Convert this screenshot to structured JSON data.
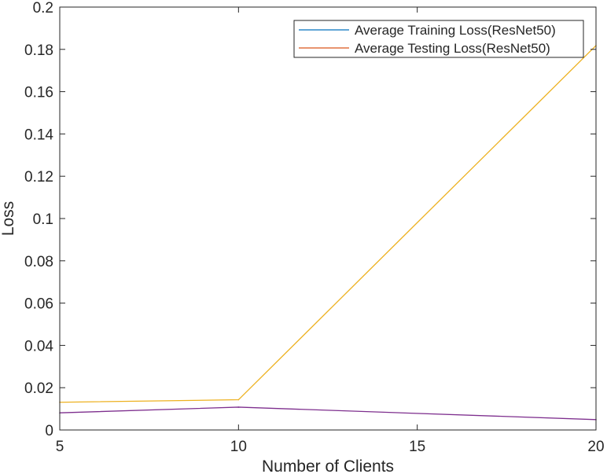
{
  "chart_data": {
    "type": "line",
    "xlabel": "Number of Clients",
    "ylabel": "Loss",
    "xlim": [
      5,
      20
    ],
    "ylim": [
      0,
      0.2
    ],
    "xticks": [
      "5",
      "10",
      "15",
      "20"
    ],
    "yticks": [
      "0",
      "0.02",
      "0.04",
      "0.06",
      "0.08",
      "0.1",
      "0.12",
      "0.14",
      "0.16",
      "0.18",
      "0.2"
    ],
    "legend_position": "top-right",
    "grid": false,
    "series": [
      {
        "name": "Average Training Loss(ResNet50)",
        "color": "#0072BD",
        "x": [
          5,
          10,
          20
        ],
        "y": [
          0.0081,
          0.0108,
          0.0049
        ]
      },
      {
        "name": "Average Testing Loss(ResNet50)",
        "color": "#D95319",
        "x": [
          5,
          10,
          20
        ],
        "y": [
          0.0131,
          0.0143,
          0.1818
        ]
      }
    ],
    "rendered_colors": [
      "#7E2F8E",
      "#EDB120"
    ]
  }
}
